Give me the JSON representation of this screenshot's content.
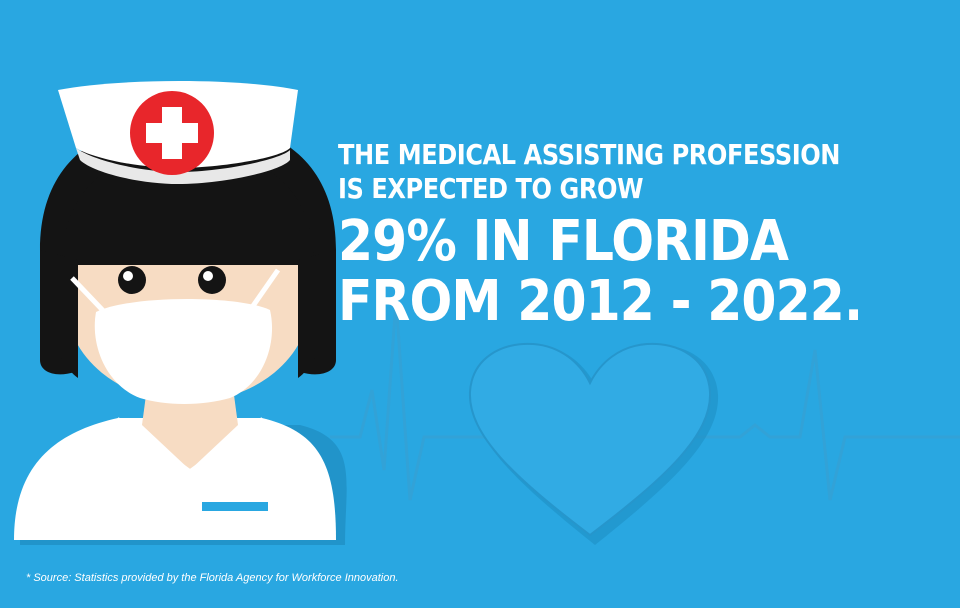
{
  "headline": {
    "line1": "THE MEDICAL ASSISTING PROFESSION",
    "line2": "IS EXPECTED TO GROW",
    "line3": "29% IN FLORIDA",
    "line4": "FROM 2012 - 2022."
  },
  "footnote": "* Source: Statistics provided by the Florida Agency for Workforce Innovation.",
  "colors": {
    "background": "#29a7e1",
    "accent_red": "#e8262b",
    "hair": "#141414",
    "skin": "#f7dcc3",
    "white": "#ffffff",
    "badge": "#29a7e1"
  },
  "icons": [
    "nurse-illustration",
    "red-cross-icon",
    "heart-icon",
    "heartbeat-line"
  ]
}
